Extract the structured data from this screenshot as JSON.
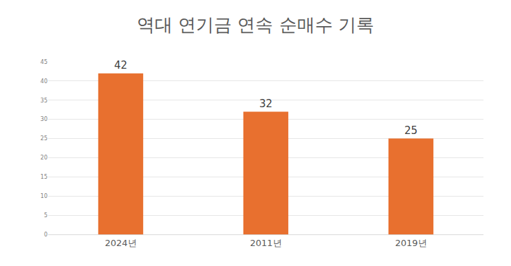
{
  "chart_data": {
    "type": "bar",
    "title": "역대 연기금 연속 순매수 기록",
    "categories": [
      "2024년",
      "2011년",
      "2019년"
    ],
    "values": [
      42,
      32,
      25
    ],
    "color": "#e8702f",
    "ylim": [
      0,
      45
    ],
    "yticks": [
      0,
      5,
      10,
      15,
      20,
      25,
      30,
      35,
      40,
      45
    ],
    "grid": true,
    "data_labels": true
  }
}
